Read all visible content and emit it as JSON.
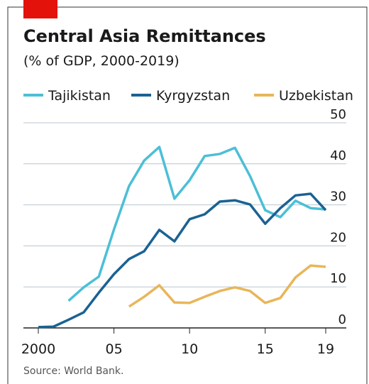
{
  "chart_data": {
    "type": "line",
    "title": "Central Asia Remittances",
    "subtitle": "(% of GDP, 2000-2019)",
    "source": "Source: World Bank.",
    "x": [
      2000,
      2001,
      2002,
      2003,
      2004,
      2005,
      2006,
      2007,
      2008,
      2009,
      2010,
      2011,
      2012,
      2013,
      2014,
      2015,
      2016,
      2017,
      2018,
      2019
    ],
    "series": [
      {
        "name": "Tajikistan",
        "color": "#4bbfd6",
        "values": [
          null,
          null,
          6.6,
          9.9,
          12.5,
          24,
          34.6,
          40.8,
          44.1,
          31.5,
          36,
          41.9,
          42.4,
          43.9,
          37,
          28.7,
          27,
          31,
          29.2,
          28.9
        ]
      },
      {
        "name": "Kyrgyzstan",
        "color": "#1a6293",
        "values": [
          0.2,
          0.3,
          2,
          3.8,
          8.6,
          13.1,
          16.8,
          18.7,
          23.9,
          21.1,
          26.5,
          27.7,
          30.8,
          31.1,
          30.1,
          25.4,
          29.2,
          32.3,
          32.7,
          28.7
        ]
      },
      {
        "name": "Uzbekistan",
        "color": "#e8b659",
        "values": [
          null,
          null,
          null,
          null,
          null,
          null,
          5.2,
          7.6,
          10.4,
          6.2,
          6.1,
          7.6,
          9,
          9.9,
          9,
          6.1,
          7.3,
          12.3,
          15.2,
          14.9
        ]
      }
    ],
    "xlim": [
      2000,
      2019
    ],
    "xticks": [
      2000,
      {
        "value": 2005,
        "label": "05"
      },
      {
        "value": 2010,
        "label": "10"
      },
      {
        "value": 2015,
        "label": "15"
      },
      {
        "value": 2019,
        "label": "19"
      }
    ],
    "ylim": [
      0,
      50
    ],
    "yticks": [
      0,
      10,
      20,
      30,
      40,
      50
    ],
    "grid": true
  }
}
